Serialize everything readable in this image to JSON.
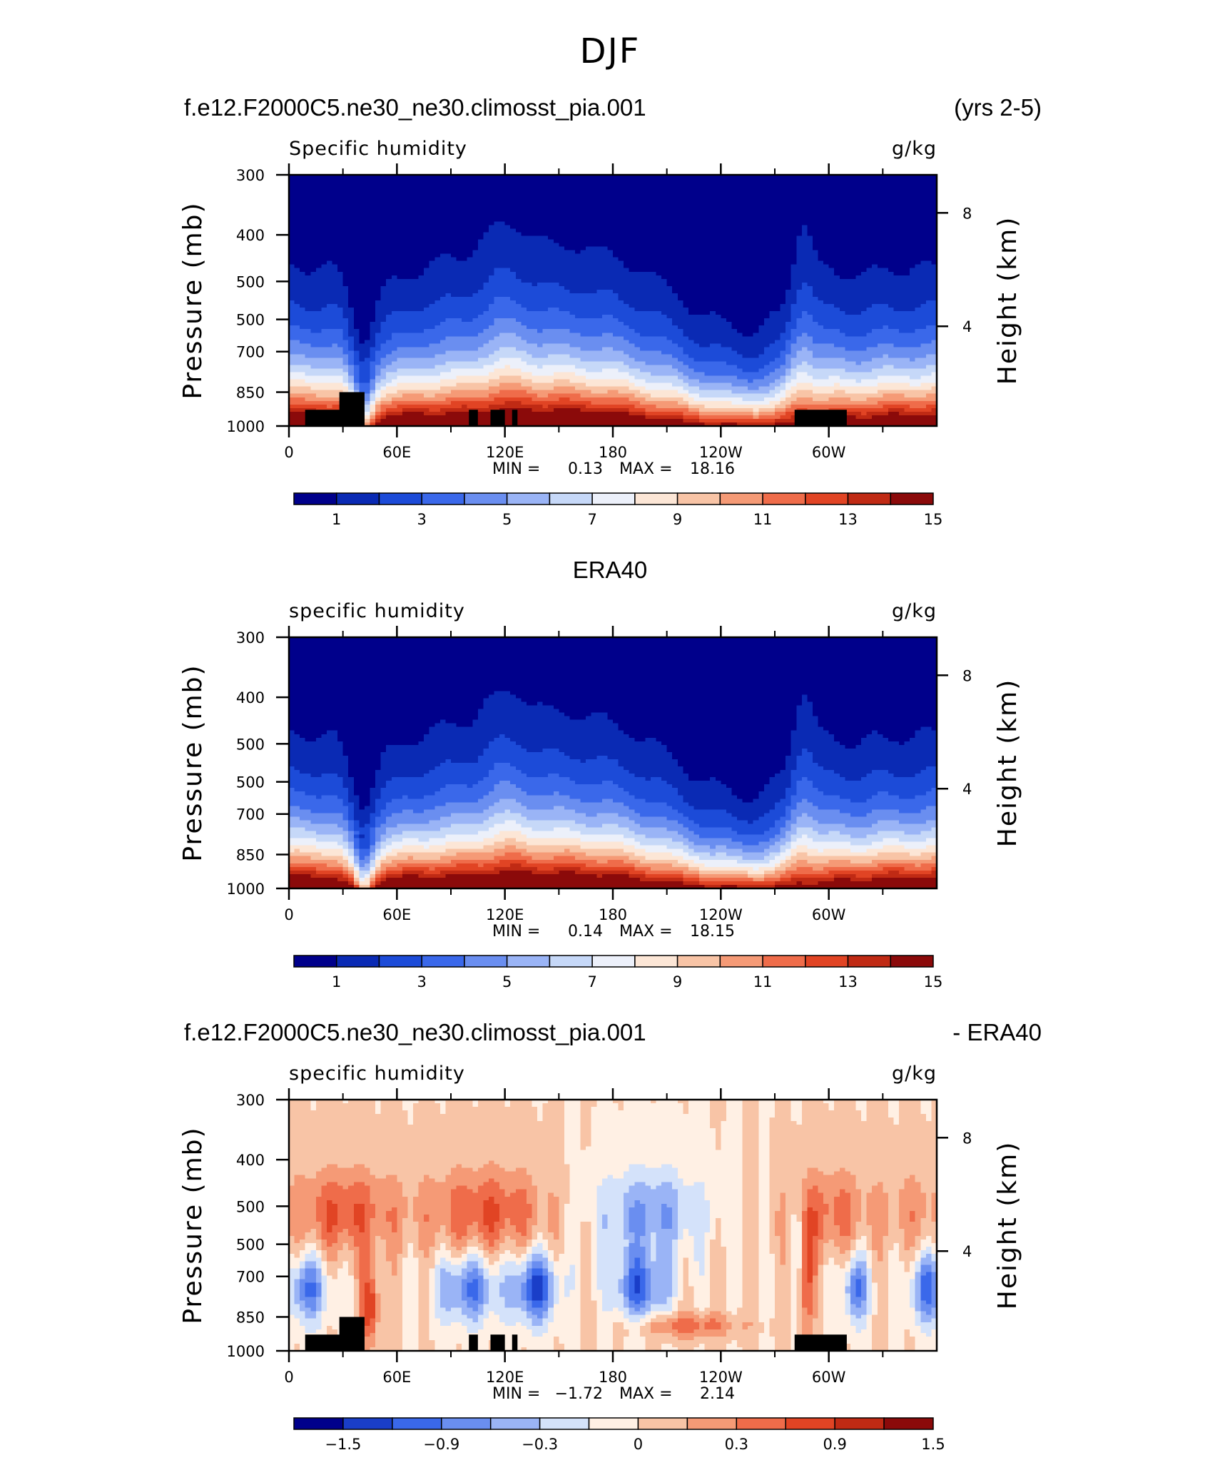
{
  "page_title": "DJF",
  "panel1_header": {
    "left": "f.e12.F2000C5.ne30_ne30.climosst_pia.001",
    "right": "(yrs 2-5)"
  },
  "panel2_header": {
    "center": "ERA40"
  },
  "panel3_header": {
    "left": "f.e12.F2000C5.ne30_ne30.climosst_pia.001",
    "right": "- ERA40"
  },
  "colors": {
    "abs_palette": [
      "#00008b",
      "#0a2ab4",
      "#1c4bd8",
      "#3a68ea",
      "#6a8ef0",
      "#9ab4f6",
      "#c6d8f8",
      "#ecf0fa",
      "#fce6d6",
      "#f8c4a6",
      "#f59a76",
      "#ef6c4a",
      "#e14424",
      "#c02a14",
      "#8b0a0a"
    ],
    "diff_palette": [
      "#00008b",
      "#1a3ec8",
      "#3a68ea",
      "#6a8ef0",
      "#9ab4f6",
      "#d4e2fa",
      "#fff0e4",
      "#f8c4a6",
      "#f59a76",
      "#ef6c4a",
      "#e14424",
      "#c02a14",
      "#8b0a0a"
    ],
    "topography": "#000000"
  },
  "chart_data": [
    {
      "type": "heatmap",
      "id": "model",
      "panel_left_label": "Specific humidity",
      "units": "g/kg",
      "ylabel": "Pressure (mb)",
      "ylabel_right": "Height (km)",
      "x_ticks": [
        "0",
        "60E",
        "120E",
        "180",
        "120W",
        "60W"
      ],
      "y_ticks": [
        "300",
        "400",
        "500",
        "500",
        "700",
        "850",
        "1000"
      ],
      "y_ticks_right": [
        "8",
        "4"
      ],
      "xlim_deg_east": [
        0,
        360
      ],
      "stats": {
        "min_label": "MIN =",
        "min": "0.13",
        "max_label": "MAX =",
        "max": "18.16"
      },
      "colorbar_labels": [
        "1",
        "3",
        "5",
        "7",
        "9",
        "11",
        "13",
        "15"
      ],
      "contour_levels": [
        1,
        2,
        3,
        4,
        5,
        6,
        7,
        8,
        9,
        10,
        11,
        12,
        13,
        14
      ],
      "field": "absolute",
      "topography": true
    },
    {
      "type": "heatmap",
      "id": "era40",
      "panel_left_label": "specific humidity",
      "units": "g/kg",
      "ylabel": "Pressure (mb)",
      "ylabel_right": "Height (km)",
      "x_ticks": [
        "0",
        "60E",
        "120E",
        "180",
        "120W",
        "60W"
      ],
      "y_ticks": [
        "300",
        "400",
        "500",
        "500",
        "700",
        "850",
        "1000"
      ],
      "y_ticks_right": [
        "8",
        "4"
      ],
      "xlim_deg_east": [
        0,
        360
      ],
      "stats": {
        "min_label": "MIN =",
        "min": "0.14",
        "max_label": "MAX =",
        "max": "18.15"
      },
      "colorbar_labels": [
        "1",
        "3",
        "5",
        "7",
        "9",
        "11",
        "13",
        "15"
      ],
      "contour_levels": [
        1,
        2,
        3,
        4,
        5,
        6,
        7,
        8,
        9,
        10,
        11,
        12,
        13,
        14
      ],
      "field": "absolute",
      "topography": false
    },
    {
      "type": "heatmap",
      "id": "difference",
      "panel_left_label": "specific humidity",
      "units": "g/kg",
      "ylabel": "Pressure (mb)",
      "ylabel_right": "Height (km)",
      "x_ticks": [
        "0",
        "60E",
        "120E",
        "180",
        "120W",
        "60W"
      ],
      "y_ticks": [
        "300",
        "400",
        "500",
        "500",
        "700",
        "850",
        "1000"
      ],
      "y_ticks_right": [
        "8",
        "4"
      ],
      "xlim_deg_east": [
        0,
        360
      ],
      "stats": {
        "min_label": "MIN =",
        "min": "−1.72",
        "max_label": "MAX =",
        "max": "2.14"
      },
      "colorbar_labels": [
        "−1.5",
        "−0.9",
        "−0.3",
        "0",
        "0.3",
        "0.9",
        "1.5"
      ],
      "contour_levels": [
        -1.8,
        -1.5,
        -1.2,
        -0.9,
        -0.6,
        -0.3,
        0,
        0.3,
        0.6,
        0.9,
        1.2,
        1.5
      ],
      "field": "difference",
      "topography": true
    }
  ]
}
